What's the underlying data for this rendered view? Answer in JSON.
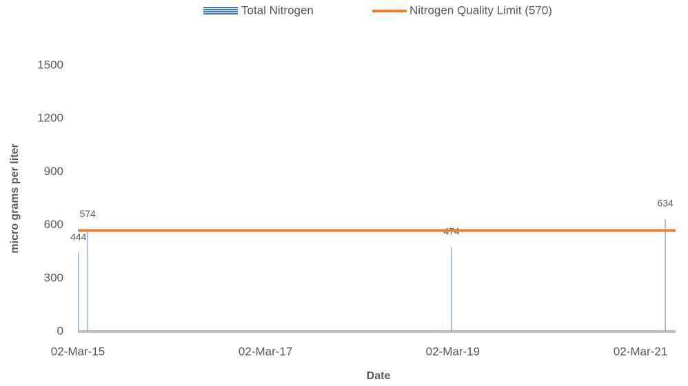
{
  "chart_data": {
    "type": "bar",
    "x_label": "Date",
    "y_label": "micro grams per liter",
    "x": [
      "2015-03-04",
      "2015-04-09",
      "2019-02-25",
      "2021-06-07"
    ],
    "series": [
      {
        "name": "Total Nitrogen",
        "color": "#8faadc",
        "values": [
          444,
          574,
          474,
          634
        ]
      }
    ],
    "limit": {
      "name": "Nitrogen Quality Limit  (570)",
      "value": 570,
      "color": "#ed7d31"
    },
    "xlim": [
      "2015-03-02",
      "2021-07-17"
    ],
    "xticks": [
      {
        "value": "2015-03-02",
        "label": "02-Mar-15"
      },
      {
        "value": "2017-03-02",
        "label": "02-Mar-17"
      },
      {
        "value": "2019-03-02",
        "label": "02-Mar-19"
      },
      {
        "value": "2021-03-02",
        "label": "02-Mar-21"
      }
    ],
    "ylim": [
      0,
      1500
    ],
    "yticks": [
      0,
      300,
      600,
      900,
      1200,
      1500
    ],
    "grid": false,
    "legend": "top"
  }
}
